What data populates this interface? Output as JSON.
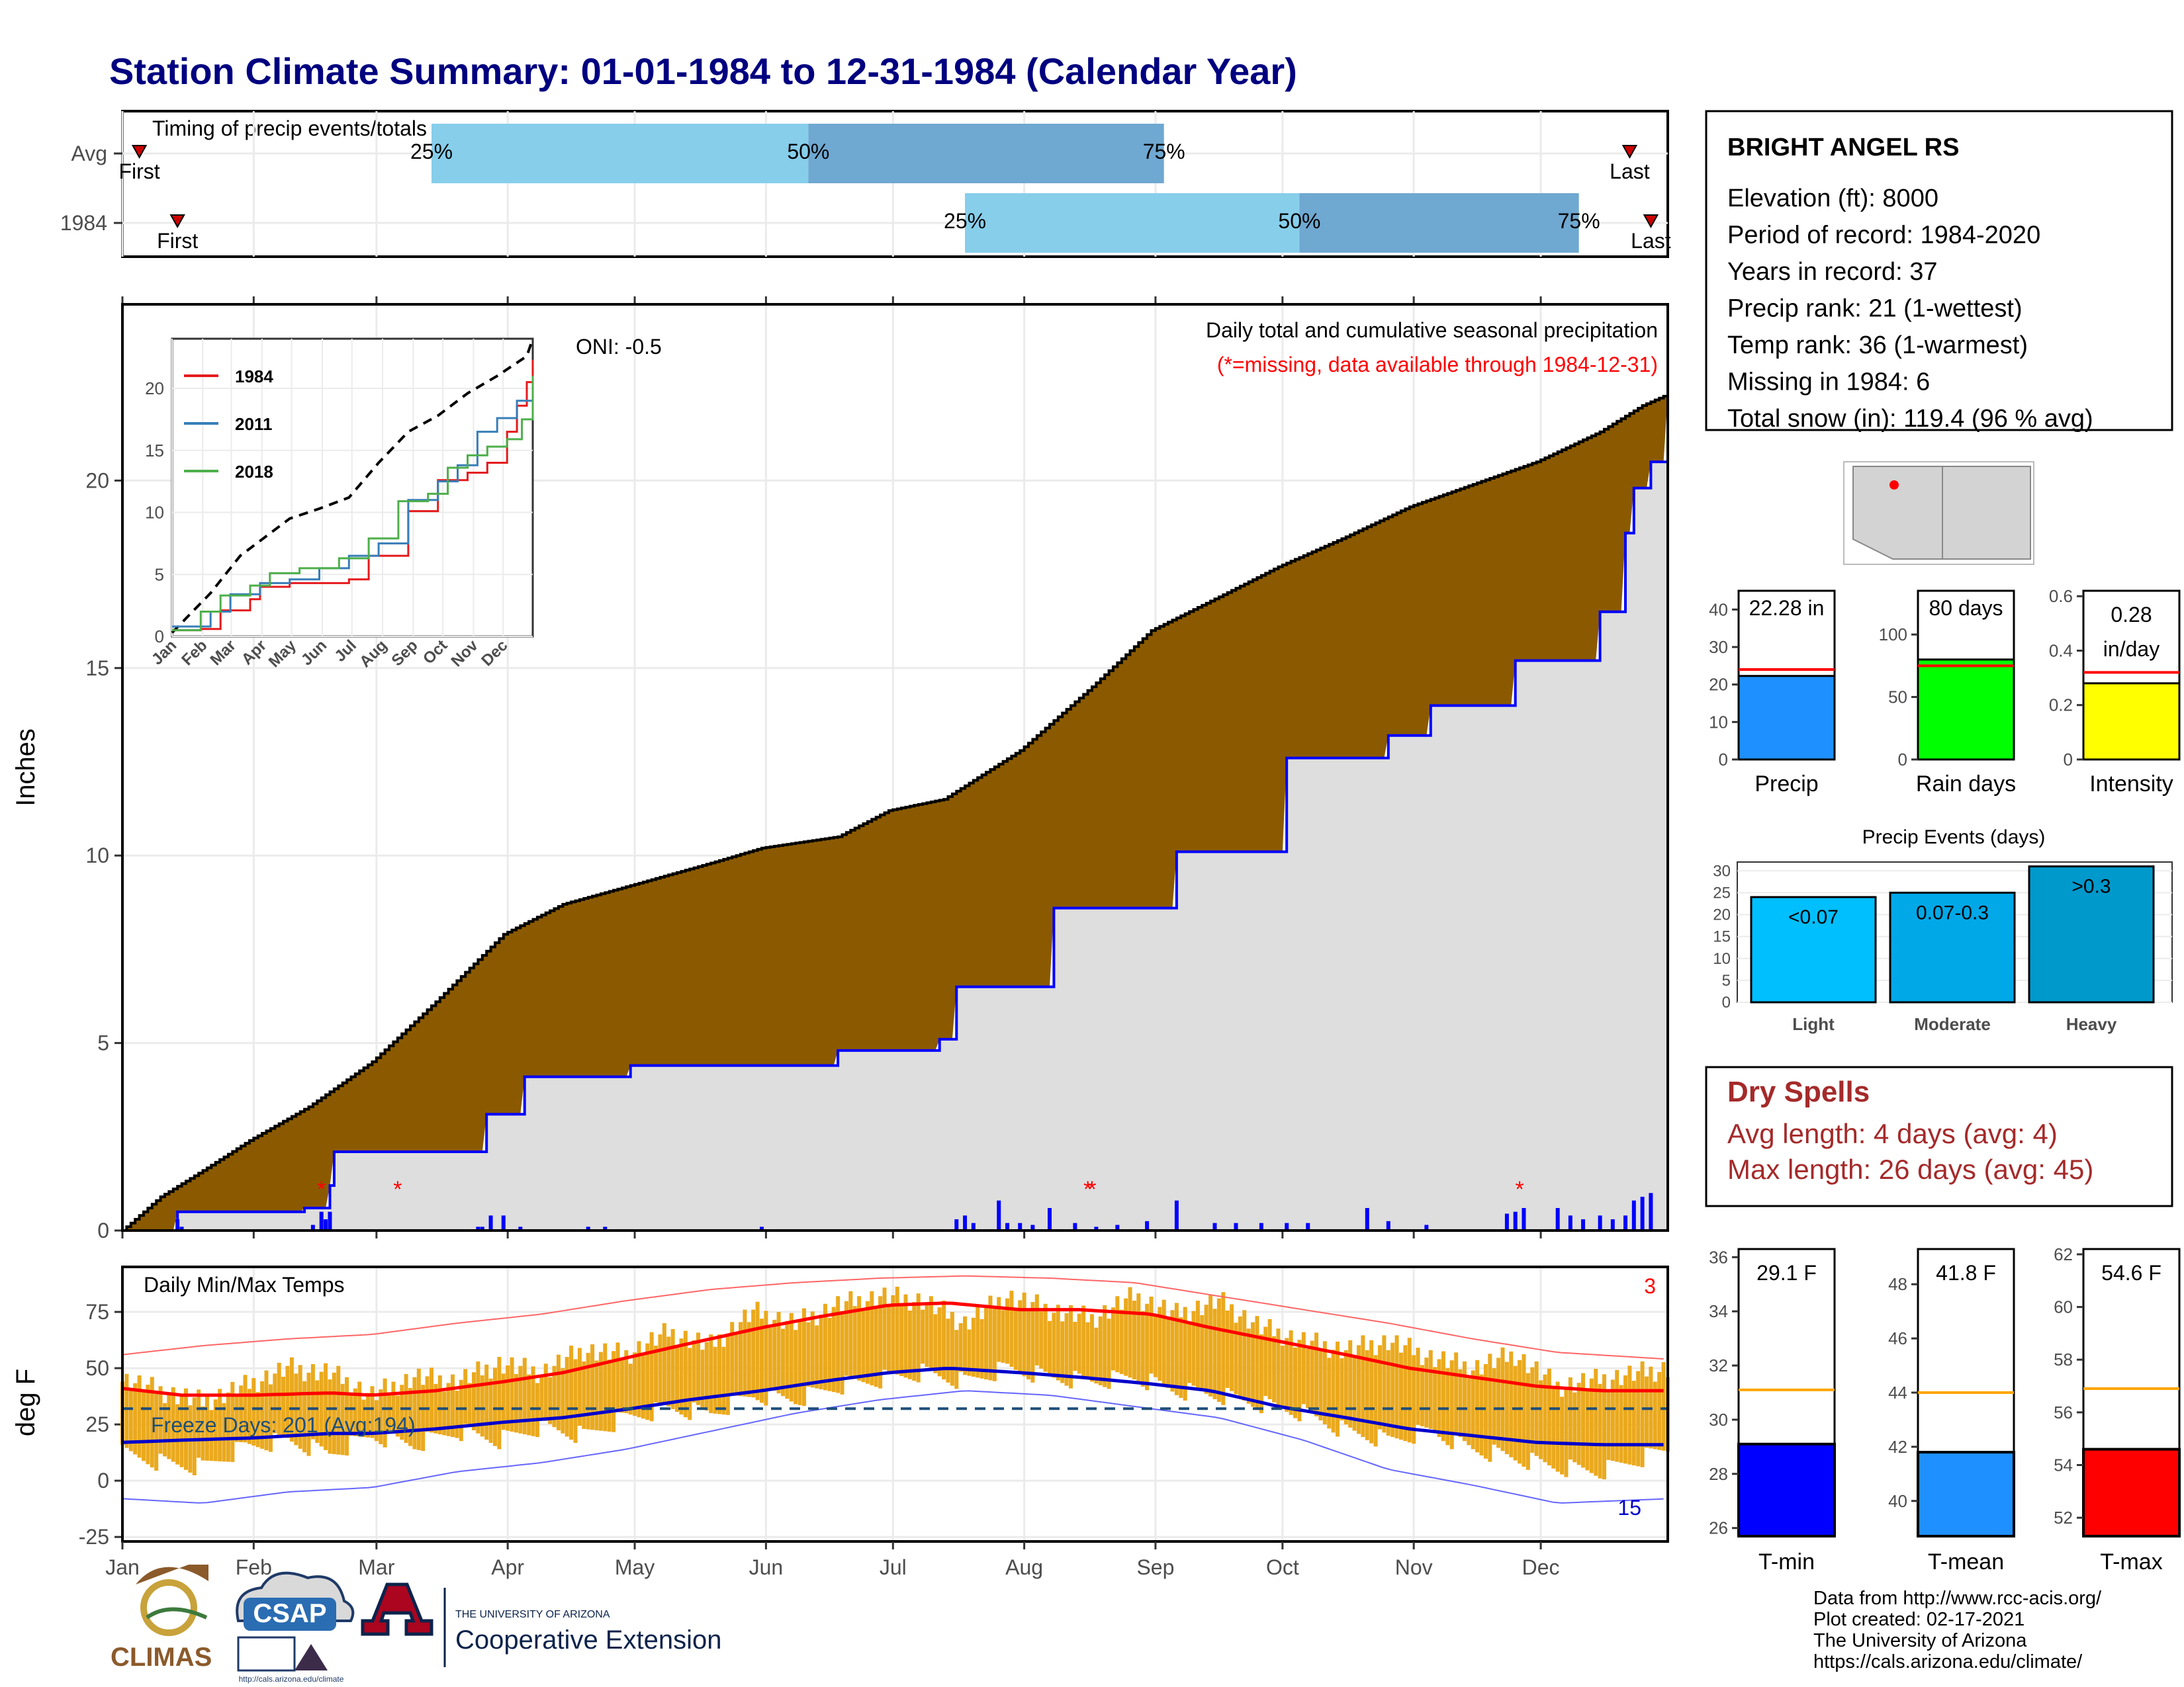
{
  "header": {
    "title": "Station Climate Summary: 01-01-1984 to 12-31-1984 (Calendar Year)"
  },
  "timing": {
    "label": "Timing of precip events/totals",
    "rows": [
      {
        "name": "Avg",
        "first_doy": 5,
        "last_doy": 357,
        "q25_doy": 74,
        "q50_doy": 163,
        "q75_doy": 247
      },
      {
        "name": "1984",
        "first_doy": 14,
        "last_doy": 362,
        "q25_doy": 200,
        "q50_doy": 279,
        "q75_doy": 345
      }
    ],
    "first_label": "First",
    "last_label": "Last",
    "pct_labels": [
      "25%",
      "50%",
      "75%"
    ],
    "colors": {
      "light": "#87ceeb",
      "dark": "#6fa8d1",
      "marker": "#cc0000"
    }
  },
  "station": {
    "name": "BRIGHT ANGEL RS",
    "lines": [
      "Elevation (ft): 8000",
      "Period of record: 1984-2020",
      "Years in record: 37",
      "Precip rank: 21 (1-wettest)",
      "Temp rank: 36 (1-warmest)",
      "Missing in 1984: 6",
      "Total snow (in): 119.4 (96 % avg)"
    ]
  },
  "summary_bars": [
    {
      "name": "Precip",
      "value_label": "22.28 in",
      "value": 22.28,
      "avg": 24,
      "ylim": [
        0,
        45
      ],
      "ticks": [
        0,
        10,
        20,
        30,
        40
      ],
      "color": "#1e90ff"
    },
    {
      "name": "Rain days",
      "value_label": "80 days",
      "value": 80,
      "avg": 75,
      "ylim": [
        0,
        135
      ],
      "ticks": [
        0,
        50,
        100
      ],
      "color": "#00ff00"
    },
    {
      "name": "Intensity",
      "value_label": "0.28 in/day",
      "value": 0.28,
      "avg": 0.32,
      "ylim": [
        0,
        0.62
      ],
      "ticks": [
        0.0,
        0.2,
        0.4,
        0.6
      ],
      "color": "#ffff00"
    }
  ],
  "precip_events": {
    "title": "Precip Events (days)",
    "ylim": [
      0,
      32
    ],
    "ticks": [
      0,
      5,
      10,
      15,
      20,
      25,
      30
    ],
    "bars": [
      {
        "name": "Light",
        "label": "<0.07",
        "value": 24,
        "color": "#00bfff"
      },
      {
        "name": "Moderate",
        "label": "0.07-0.3",
        "value": 25,
        "color": "#00a8e8"
      },
      {
        "name": "Heavy",
        "label": ">0.3",
        "value": 31,
        "color": "#0099cc"
      }
    ]
  },
  "dry_spells": {
    "title": "Dry Spells",
    "lines": [
      "Avg length: 4 days (avg: 4)",
      "Max length: 26 days (avg: 45)"
    ]
  },
  "temp_bars": [
    {
      "name": "T-min",
      "value_label": "29.1 F",
      "value": 29.1,
      "avg": 31.1,
      "ylim": [
        25.7,
        36.3
      ],
      "ticks": [
        26,
        28,
        30,
        32,
        34,
        36
      ],
      "color": "#0000ff"
    },
    {
      "name": "T-mean",
      "value_label": "41.8 F",
      "value": 41.8,
      "avg": 44.0,
      "ylim": [
        38.7,
        49.3
      ],
      "ticks": [
        40,
        42,
        44,
        46,
        48
      ],
      "color": "#1e90ff"
    },
    {
      "name": "T-max",
      "value_label": "54.6 F",
      "value": 54.6,
      "avg": 56.9,
      "ylim": [
        51.3,
        62.2
      ],
      "ticks": [
        52,
        54,
        56,
        58,
        60,
        62
      ],
      "color": "#ff0000"
    }
  ],
  "months": [
    "Jan",
    "Feb",
    "Mar",
    "Apr",
    "May",
    "Jun",
    "Jul",
    "Aug",
    "Sep",
    "Oct",
    "Nov",
    "Dec"
  ],
  "chart_data": [
    {
      "type": "area",
      "title": "Daily total and cumulative seasonal precipitation",
      "subtitle": "(*=missing, data available through 1984-12-31)",
      "ylabel": "Inches",
      "oni": "ONI: -0.5",
      "ylim": [
        0,
        24.7
      ],
      "yticks": [
        0,
        5,
        10,
        15,
        20
      ],
      "avg_cumulative": {
        "doy": [
          1,
          10,
          20,
          31,
          45,
          60,
          75,
          91,
          105,
          121,
          140,
          152,
          170,
          182,
          195,
          213,
          230,
          244,
          260,
          274,
          290,
          305,
          320,
          335,
          350,
          360,
          366
        ],
        "inches": [
          0,
          0.9,
          1.6,
          2.4,
          3.3,
          4.5,
          6.1,
          7.9,
          8.7,
          9.2,
          9.8,
          10.2,
          10.5,
          11.2,
          11.5,
          12.8,
          14.5,
          16.0,
          16.9,
          17.7,
          18.5,
          19.3,
          19.9,
          20.5,
          21.3,
          22.0,
          22.3
        ]
      },
      "year_cumulative": {
        "doy": [
          1,
          14,
          31,
          44,
          50,
          51,
          84,
          87,
          96,
          121,
          170,
          194,
          198,
          221,
          226,
          250,
          276,
          300,
          310,
          330,
          350,
          356,
          358,
          362,
          366
        ],
        "inches": [
          0,
          0.5,
          0.5,
          0.6,
          1.2,
          2.1,
          2.1,
          3.1,
          4.1,
          4.4,
          4.8,
          5.1,
          6.5,
          8.6,
          8.6,
          10.1,
          12.6,
          13.2,
          14.0,
          15.2,
          16.5,
          18.6,
          19.8,
          20.5,
          22.28
        ]
      },
      "daily_bars": {
        "doy": [
          14,
          15,
          46,
          48,
          49,
          50,
          85,
          86,
          88,
          91,
          95,
          111,
          115,
          152,
          198,
          200,
          202,
          208,
          210,
          213,
          216,
          220,
          226,
          231,
          236,
          243,
          250,
          259,
          264,
          270,
          276,
          281,
          295,
          300,
          309,
          328,
          330,
          332,
          340,
          343,
          346,
          350,
          353,
          356,
          358,
          360,
          362
        ],
        "inches": [
          0.3,
          0.1,
          0.15,
          0.5,
          0.3,
          0.5,
          0.1,
          0.1,
          0.4,
          0.4,
          0.1,
          0.1,
          0.1,
          0.1,
          0.3,
          0.4,
          0.2,
          0.8,
          0.2,
          0.2,
          0.15,
          0.6,
          0.2,
          0.1,
          0.15,
          0.25,
          0.8,
          0.2,
          0.2,
          0.2,
          0.2,
          0.2,
          0.6,
          0.25,
          0.15,
          0.45,
          0.5,
          0.6,
          0.6,
          0.4,
          0.3,
          0.4,
          0.3,
          0.4,
          0.8,
          0.9,
          1.0
        ]
      },
      "missing_doy": [
        48,
        66,
        229,
        230,
        331
      ],
      "inset": {
        "xlabels": [
          "Jan",
          "Feb",
          "Mar",
          "Apr",
          "May",
          "Jun",
          "Jul",
          "Aug",
          "Sep",
          "Oct",
          "Nov",
          "Dec"
        ],
        "yticks": [
          0,
          5,
          10,
          15,
          20
        ],
        "ylim": [
          0,
          24
        ],
        "avg_line": {
          "doy": [
            1,
            40,
            70,
            120,
            150,
            180,
            210,
            240,
            270,
            300,
            330,
            360,
            366
          ],
          "inches": [
            0.3,
            3.5,
            6.5,
            9.5,
            10.3,
            11.2,
            14.0,
            16.5,
            17.8,
            19.6,
            21.0,
            22.6,
            24.0
          ]
        },
        "series": [
          {
            "name": "1984",
            "color": "#e41a1c",
            "doy": [
              1,
              30,
              50,
              80,
              90,
              120,
              180,
              200,
              240,
              270,
              300,
              320,
              340,
              350,
              360,
              366
            ],
            "inches": [
              0.5,
              0.6,
              2.1,
              3.0,
              4.0,
              4.3,
              4.6,
              6.5,
              10.1,
              12.6,
              13.2,
              14.0,
              16.5,
              18.6,
              20.5,
              22.3
            ]
          },
          {
            "name": "2011",
            "color": "#377eb8",
            "doy": [
              1,
              40,
              60,
              90,
              120,
              150,
              180,
              210,
              240,
              270,
              290,
              310,
              330,
              350,
              366
            ],
            "inches": [
              0.8,
              2.0,
              3.4,
              4.3,
              4.6,
              5.5,
              6.5,
              7.5,
              11.0,
              12.5,
              13.8,
              16.5,
              17.6,
              19.0,
              19.3
            ]
          },
          {
            "name": "2018",
            "color": "#4daf4a",
            "doy": [
              1,
              30,
              50,
              80,
              100,
              130,
              170,
              200,
              230,
              260,
              280,
              300,
              320,
              340,
              355,
              366
            ],
            "inches": [
              0.5,
              2.0,
              3.3,
              4.1,
              5.1,
              5.5,
              6.3,
              7.9,
              10.9,
              11.5,
              13.6,
              14.6,
              15.3,
              15.9,
              17.5,
              21.0
            ]
          }
        ]
      }
    },
    {
      "type": "line",
      "title": "Daily Min/Max Temps",
      "ylabel": "deg F",
      "ylim": [
        -27,
        95
      ],
      "yticks": [
        -25,
        0,
        25,
        50,
        75
      ],
      "freeze_label": "Freeze Days: 201 (Avg:194)",
      "freeze_line": 32,
      "count_hot": "3",
      "count_cold": "15",
      "avg_max": {
        "doy": [
          1,
          15,
          32,
          50,
          60,
          75,
          91,
          105,
          121,
          135,
          152,
          166,
          182,
          196,
          213,
          227,
          244,
          258,
          274,
          290,
          305,
          320,
          335,
          350,
          366
        ],
        "values": [
          41,
          38,
          38,
          39,
          38,
          40,
          44,
          48,
          55,
          61,
          68,
          73,
          78,
          79,
          76,
          76,
          74,
          68,
          62,
          56,
          50,
          46,
          42,
          40,
          40
        ]
      },
      "avg_min": {
        "doy": [
          1,
          15,
          32,
          50,
          60,
          75,
          91,
          105,
          121,
          135,
          152,
          166,
          182,
          196,
          213,
          227,
          244,
          258,
          274,
          290,
          305,
          320,
          335,
          350,
          366
        ],
        "values": [
          17,
          18,
          19,
          21,
          21,
          23,
          26,
          28,
          32,
          36,
          40,
          44,
          48,
          50,
          48,
          46,
          43,
          40,
          33,
          28,
          23,
          20,
          17,
          16,
          16
        ]
      },
      "record_max": {
        "doy": [
          1,
          20,
          40,
          60,
          80,
          100,
          120,
          140,
          160,
          180,
          200,
          220,
          240,
          260,
          280,
          300,
          320,
          340,
          366
        ],
        "values": [
          56,
          60,
          63,
          65,
          70,
          74,
          80,
          85,
          88,
          90,
          91,
          90,
          88,
          82,
          76,
          70,
          63,
          57,
          54
        ]
      },
      "record_min": {
        "doy": [
          1,
          20,
          40,
          60,
          80,
          100,
          120,
          140,
          160,
          180,
          200,
          220,
          240,
          260,
          280,
          300,
          320,
          340,
          366
        ],
        "values": [
          -8,
          -10,
          -5,
          -3,
          4,
          8,
          14,
          22,
          30,
          36,
          40,
          38,
          33,
          28,
          18,
          5,
          -2,
          -10,
          -8
        ]
      },
      "daily_max": {
        "doy": [
          1,
          10,
          20,
          30,
          40,
          50,
          60,
          70,
          80,
          90,
          100,
          110,
          120,
          130,
          140,
          150,
          160,
          170,
          180,
          190,
          200,
          210,
          220,
          230,
          240,
          250,
          260,
          270,
          280,
          290,
          300,
          310,
          320,
          330,
          340,
          350,
          360,
          366
        ],
        "values": [
          45,
          40,
          35,
          42,
          50,
          48,
          38,
          46,
          44,
          52,
          48,
          58,
          56,
          66,
          60,
          75,
          70,
          78,
          82,
          80,
          70,
          82,
          76,
          72,
          82,
          74,
          80,
          68,
          62,
          58,
          62,
          55,
          50,
          56,
          42,
          45,
          48,
          50
        ]
      },
      "daily_min": {
        "doy": [
          1,
          10,
          20,
          30,
          40,
          50,
          60,
          70,
          80,
          90,
          100,
          110,
          120,
          130,
          140,
          150,
          160,
          170,
          180,
          190,
          200,
          210,
          220,
          230,
          240,
          250,
          260,
          270,
          280,
          290,
          300,
          310,
          320,
          330,
          340,
          350,
          360,
          366
        ],
        "values": [
          12,
          8,
          6,
          15,
          18,
          12,
          20,
          16,
          22,
          18,
          24,
          20,
          28,
          32,
          30,
          38,
          36,
          42,
          45,
          48,
          44,
          50,
          46,
          44,
          46,
          40,
          38,
          34,
          30,
          22,
          18,
          22,
          14,
          10,
          6,
          4,
          10,
          14
        ]
      },
      "colors": {
        "bar": "#eaa91e",
        "avg_max": "#ff0000",
        "avg_min": "#0000cc",
        "record_max": "#ff6666",
        "record_min": "#6666ff",
        "freeze": "#1f4e79"
      }
    }
  ],
  "footer": {
    "lines": [
      "Data from http://www.rcc-acis.org/",
      "Plot created: 02-17-2021",
      "The University of Arizona",
      "https://cals.arizona.edu/climate/"
    ],
    "logos": {
      "climas": "CLIMAS",
      "csap": "CSAP",
      "csap_url": "http://cals.arizona.edu/climate",
      "ua_small": "THE UNIVERSITY OF ARIZONA",
      "ua_big": "Cooperative Extension"
    }
  }
}
